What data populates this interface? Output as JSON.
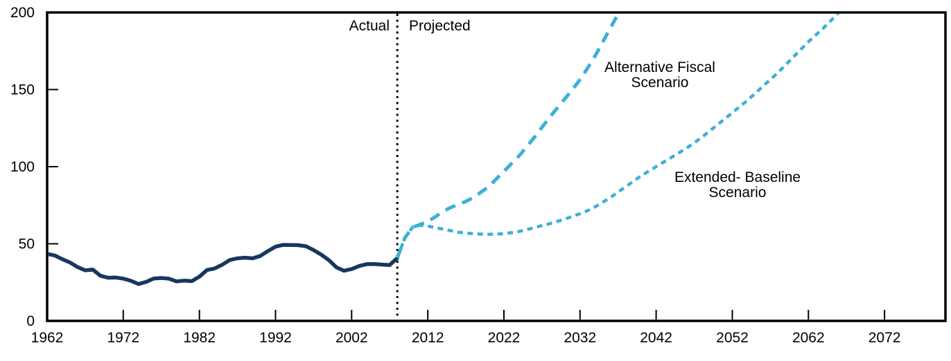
{
  "chart_data": {
    "type": "line",
    "title": "",
    "xlabel": "",
    "ylabel": "",
    "xlim": [
      1962,
      2080
    ],
    "ylim": [
      0,
      200
    ],
    "x_ticks": [
      1962,
      1972,
      1982,
      1992,
      2002,
      2012,
      2022,
      2032,
      2042,
      2052,
      2062,
      2072
    ],
    "y_ticks": [
      0,
      50,
      100,
      150,
      200
    ],
    "grid": false,
    "legend_position": "none (inline text annotations)",
    "divider": {
      "x": 2008,
      "style": "dotted-vertical",
      "label_left": "Actual",
      "label_right": "Projected"
    },
    "annotations": {
      "alternative_fiscal": "Alternative Fiscal\nScenario",
      "extended_baseline": "Extended- Baseline\nScenario"
    },
    "colors": {
      "actual": "#17375E",
      "projection": "#3EAFD6",
      "axis": "#000000"
    },
    "series": [
      {
        "name": "Actual",
        "style": "solid",
        "color_key": "actual",
        "start_year": 1962,
        "step": 1,
        "values": [
          43.4,
          42.4,
          40.0,
          37.9,
          34.9,
          32.8,
          33.3,
          29.3,
          28.0,
          28.1,
          27.4,
          26.0,
          23.9,
          25.3,
          27.5,
          27.8,
          27.4,
          25.6,
          26.1,
          25.8,
          28.7,
          33.0,
          34.0,
          36.4,
          39.5,
          40.6,
          41.0,
          40.6,
          42.1,
          45.3,
          48.1,
          49.3,
          49.2,
          49.1,
          48.4,
          45.9,
          43.0,
          39.4,
          34.7,
          32.5,
          33.6,
          35.6,
          36.8,
          36.9,
          36.5,
          36.2,
          40.8
        ]
      },
      {
        "name": "Alternative Fiscal Scenario",
        "style": "long-dash",
        "color_key": "projection",
        "start_year": 2008,
        "step": 1,
        "values": [
          40.8,
          54,
          60.7,
          62.5,
          64.5,
          67.5,
          71,
          73.5,
          75.5,
          77.5,
          80,
          83.5,
          87,
          92,
          97,
          102,
          107,
          113,
          119,
          125.5,
          132,
          138,
          144,
          150,
          156.5,
          164,
          172,
          181,
          190,
          199,
          209
        ]
      },
      {
        "name": "Extended-Baseline Scenario",
        "style": "short-dash",
        "color_key": "projection",
        "start_year": 2008,
        "step": 1,
        "values": [
          40.8,
          54,
          60.7,
          62,
          61.5,
          60.5,
          59.5,
          58.5,
          57.5,
          57,
          56.5,
          56.3,
          56.2,
          56.3,
          56.5,
          57.2,
          58,
          59.2,
          60.5,
          61.8,
          63,
          64.5,
          66,
          67.8,
          69.5,
          71.5,
          74,
          77,
          80,
          83.5,
          87,
          90.5,
          94,
          97,
          100,
          103,
          106,
          109,
          112,
          115.5,
          119,
          123,
          127,
          131,
          135,
          139,
          143,
          147.5,
          152,
          156.5,
          161,
          166,
          171,
          176,
          181,
          185.5,
          190,
          195,
          200,
          205
        ]
      }
    ]
  }
}
